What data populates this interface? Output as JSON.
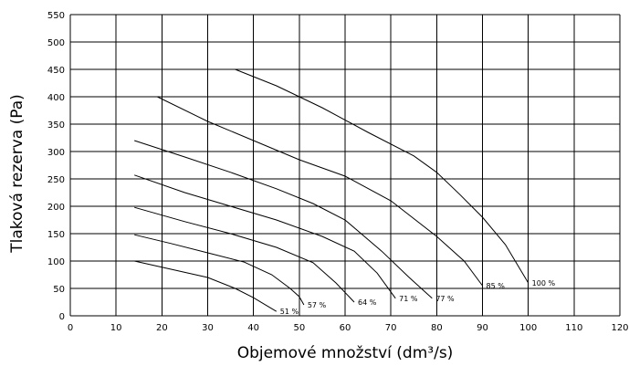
{
  "chart_data": {
    "type": "line",
    "xlabel": "Objemové množství (dm³/s)",
    "ylabel": "Tlaková rezerva (Pa)",
    "xlim": [
      0,
      120
    ],
    "ylim": [
      0,
      550
    ],
    "x_ticks": [
      "0",
      "10",
      "20",
      "30",
      "40",
      "50",
      "60",
      "70",
      "80",
      "90",
      "100",
      "110",
      "120"
    ],
    "y_ticks": [
      "0",
      "50",
      "100",
      "150",
      "200",
      "250",
      "300",
      "350",
      "400",
      "450",
      "500",
      "550"
    ],
    "grid": true,
    "series": [
      {
        "name": "51 %",
        "points": [
          [
            14,
            100
          ],
          [
            22,
            85
          ],
          [
            30,
            70
          ],
          [
            36,
            50
          ],
          [
            40,
            33
          ],
          [
            43,
            18
          ],
          [
            45,
            8
          ]
        ]
      },
      {
        "name": "57 %",
        "points": [
          [
            14,
            148
          ],
          [
            22,
            132
          ],
          [
            30,
            115
          ],
          [
            38,
            98
          ],
          [
            44,
            75
          ],
          [
            48,
            50
          ],
          [
            50,
            35
          ],
          [
            51,
            20
          ]
        ]
      },
      {
        "name": "64 %",
        "points": [
          [
            14,
            198
          ],
          [
            25,
            172
          ],
          [
            35,
            150
          ],
          [
            45,
            125
          ],
          [
            53,
            97
          ],
          [
            58,
            60
          ],
          [
            62,
            25
          ]
        ]
      },
      {
        "name": "71 %",
        "points": [
          [
            14,
            257
          ],
          [
            25,
            225
          ],
          [
            35,
            200
          ],
          [
            45,
            175
          ],
          [
            55,
            145
          ],
          [
            62,
            118
          ],
          [
            67,
            78
          ],
          [
            71,
            32
          ]
        ]
      },
      {
        "name": "77 %",
        "points": [
          [
            14,
            320
          ],
          [
            25,
            290
          ],
          [
            35,
            262
          ],
          [
            45,
            232
          ],
          [
            53,
            205
          ],
          [
            60,
            175
          ],
          [
            68,
            118
          ],
          [
            74,
            70
          ],
          [
            79,
            32
          ]
        ]
      },
      {
        "name": "85 %",
        "points": [
          [
            19,
            400
          ],
          [
            30,
            355
          ],
          [
            40,
            320
          ],
          [
            50,
            285
          ],
          [
            60,
            255
          ],
          [
            70,
            210
          ],
          [
            80,
            145
          ],
          [
            86,
            100
          ],
          [
            90,
            55
          ]
        ]
      },
      {
        "name": "100 %",
        "points": [
          [
            36,
            450
          ],
          [
            45,
            420
          ],
          [
            55,
            380
          ],
          [
            65,
            335
          ],
          [
            75,
            292
          ],
          [
            80,
            262
          ],
          [
            85,
            222
          ],
          [
            90,
            180
          ],
          [
            95,
            130
          ],
          [
            100,
            60
          ]
        ]
      }
    ]
  }
}
